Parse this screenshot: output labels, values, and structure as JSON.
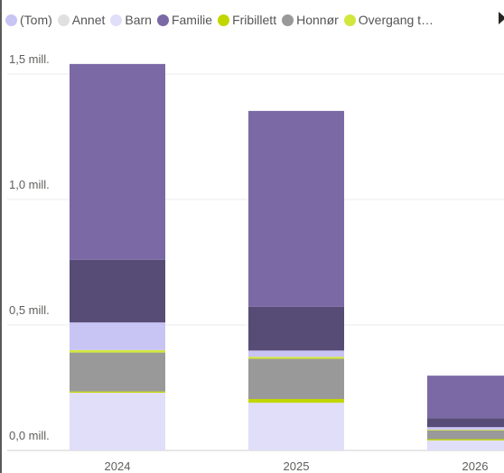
{
  "legend": [
    {
      "label": "(Tom)",
      "color": "#c8c4f4"
    },
    {
      "label": "Annet",
      "color": "#e0e0e0"
    },
    {
      "label": "Barn",
      "color": "#e0def9"
    },
    {
      "label": "Familie",
      "color": "#7b69a5"
    },
    {
      "label": "Fribillett",
      "color": "#c2d600"
    },
    {
      "label": "Honnør",
      "color": "#999999"
    },
    {
      "label": "Overgang t…",
      "color": "#d2e63c"
    }
  ],
  "legend_more_icon": "caret-right-icon",
  "chart_data": {
    "type": "bar",
    "stacked": true,
    "categories": [
      "2024",
      "2025",
      "2026"
    ],
    "y_ticks": [
      "0,0 mill.",
      "0,5 mill.",
      "1,0 mill.",
      "1,5 mill."
    ],
    "y_tick_values": [
      0,
      500000,
      1000000,
      1500000
    ],
    "ylim": [
      0,
      1500000
    ],
    "grid": true,
    "series": [
      {
        "name": "Barn",
        "color": "#e0def9",
        "values": [
          230000,
          190000,
          40000
        ]
      },
      {
        "name": "Fribillett",
        "color": "#c2d600",
        "values": [
          5000,
          15000,
          5000
        ]
      },
      {
        "name": "Honnør",
        "color": "#999999",
        "values": [
          155000,
          160000,
          35000
        ]
      },
      {
        "name": "Overgang t…",
        "color": "#d2e63c",
        "values": [
          10000,
          8000,
          3000
        ]
      },
      {
        "name": "Annet",
        "color": "#e0e0e0",
        "values": [
          0,
          0,
          0
        ]
      },
      {
        "name": "(Tom)",
        "color": "#c8c4f4",
        "values": [
          110000,
          25000,
          10000
        ]
      },
      {
        "name": "",
        "color": "#574c76",
        "values": [
          250000,
          175000,
          35000
        ]
      },
      {
        "name": "Familie",
        "color": "#7b69a5",
        "values": [
          780000,
          780000,
          170000
        ]
      }
    ]
  }
}
